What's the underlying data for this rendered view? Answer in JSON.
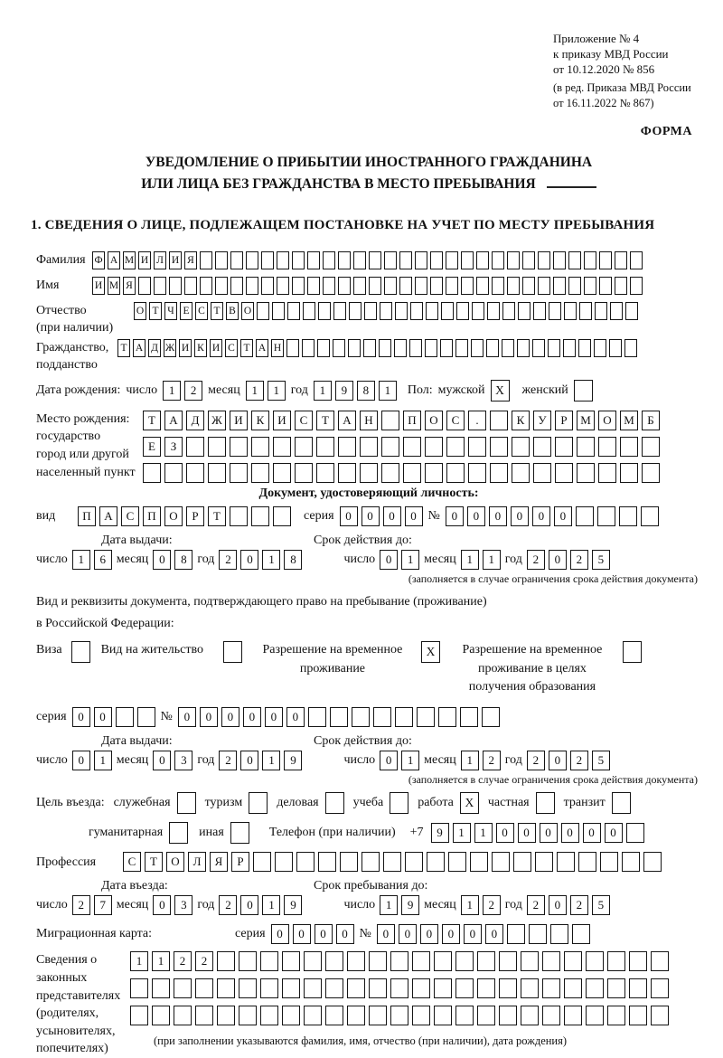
{
  "header": {
    "annex_lines": [
      "Приложение № 4",
      "к приказу МВД России",
      "от 10.12.2020 № 856"
    ],
    "edition_lines": [
      "(в ред. Приказа МВД России",
      "от 16.11.2022 № 867)"
    ],
    "forma": "ФОРМА",
    "title_line1": "УВЕДОМЛЕНИЕ О ПРИБЫТИИ ИНОСТРАННОГО ГРАЖДАНИНА",
    "title_line2": "ИЛИ ЛИЦА БЕЗ ГРАЖДАНСТВА В МЕСТО ПРЕБЫВАНИЯ",
    "section1": "1. СВЕДЕНИЯ О ЛИЦЕ, ПОДЛЕЖАЩЕМ ПОСТАНОВКЕ НА УЧЕТ ПО МЕСТУ ПРЕБЫВАНИЯ"
  },
  "labels": {
    "day": "число",
    "month": "месяц",
    "year": "год",
    "series": "серия",
    "number": "№",
    "issue_date": "Дата выдачи:",
    "valid_until": "Срок действия до:",
    "validity_note": "(заполняется в случае ограничения срока действия документа)"
  },
  "person": {
    "surname": {
      "label": "Фамилия",
      "value": "ФАМИЛИЯ",
      "cells": 36
    },
    "firstname": {
      "label": "Имя",
      "value": "ИМЯ",
      "cells": 36
    },
    "patronymic": {
      "label1": "Отчество",
      "label2": "(при наличии)",
      "value": "ОТЧЕСТВО",
      "cells": 33
    },
    "citizenship": {
      "label1": "Гражданство,",
      "label2": "подданство",
      "value": "ТАДЖИКИСТАН",
      "cells": 34
    },
    "birth_date_label": "Дата рождения:",
    "birth_date": {
      "day": "12",
      "month": "11",
      "year": "1981"
    },
    "gender": {
      "label": "Пол:",
      "male": "мужской",
      "male_mark": "X",
      "female": "женский",
      "female_mark": ""
    },
    "birth_place": {
      "label1": "Место рождения:",
      "label2": "государство",
      "label3": "город или другой",
      "label4": "населенный пункт",
      "row1": {
        "value": "ТАДЖИКИСТАН ПОС. КУРМОМБ",
        "cells": 24
      },
      "row2": {
        "value": "ЕЗ",
        "cells": 24
      },
      "row3": {
        "value": "",
        "cells": 24
      }
    }
  },
  "identity_doc": {
    "header": "Документ, удостоверяющий личность:",
    "type_label": "вид",
    "type": {
      "value": "ПАСПОРТ",
      "cells": 10
    },
    "series": {
      "value": "0000",
      "cells": 4
    },
    "number": {
      "value": "000000",
      "cells": 10
    },
    "issue": {
      "day": "16",
      "month": "08",
      "year": "2018"
    },
    "valid": {
      "day": "01",
      "month": "11",
      "year": "2025"
    }
  },
  "stay_doc": {
    "intro1": "Вид и реквизиты документа, подтверждающего право на пребывание (проживание)",
    "intro2": "в Российской Федерации:",
    "options": [
      {
        "label": "Виза",
        "mark": ""
      },
      {
        "label": "Вид на жительство",
        "mark": ""
      },
      {
        "label": "Разрешение на временное проживание",
        "mark": "X"
      },
      {
        "label": "Разрешение на временное проживание в целях получения образования",
        "mark": ""
      }
    ],
    "series": {
      "value": "00",
      "cells": 4
    },
    "number": {
      "value": "000000",
      "cells": 15
    },
    "issue": {
      "day": "01",
      "month": "03",
      "year": "2019"
    },
    "valid": {
      "day": "01",
      "month": "12",
      "year": "2025"
    }
  },
  "visit": {
    "purpose_label": "Цель въезда:",
    "purposes": [
      {
        "label": "служебная",
        "mark": ""
      },
      {
        "label": "туризм",
        "mark": ""
      },
      {
        "label": "деловая",
        "mark": ""
      },
      {
        "label": "учеба",
        "mark": ""
      },
      {
        "label": "работа",
        "mark": "X"
      },
      {
        "label": "частная",
        "mark": ""
      },
      {
        "label": "транзит",
        "mark": ""
      }
    ],
    "purposes2": [
      {
        "label": "гуманитарная",
        "mark": ""
      },
      {
        "label": "иная",
        "mark": ""
      }
    ],
    "phone_label": "Телефон (при наличии)",
    "phone_prefix": "+7",
    "phone": {
      "value": "911000000",
      "cells": 10
    },
    "profession_label": "Профессия",
    "profession": {
      "value": "СТОЛЯР",
      "cells": 25
    },
    "entry_header": "Дата въезда:",
    "entry": {
      "day": "27",
      "month": "03",
      "year": "2019"
    },
    "stay_header": "Срок пребывания до:",
    "stay": {
      "day": "19",
      "month": "12",
      "year": "2025"
    },
    "migration_card_label": "Миграционная карта:",
    "mc_series": {
      "value": "0000",
      "cells": 4
    },
    "mc_number": {
      "value": "000000",
      "cells": 10
    }
  },
  "representatives": {
    "label1": "Сведения о",
    "label2": "законных",
    "label3": "представителях",
    "label4": "(родителях,",
    "label5": "усыновителях,",
    "label6": "попечителях)",
    "row1": {
      "value": "1122",
      "cells": 25
    },
    "row2": {
      "value": "",
      "cells": 25
    },
    "row3": {
      "value": "",
      "cells": 25
    },
    "note": "(при заполнении указываются фамилия, имя, отчество (при наличии), дата рождения)"
  }
}
